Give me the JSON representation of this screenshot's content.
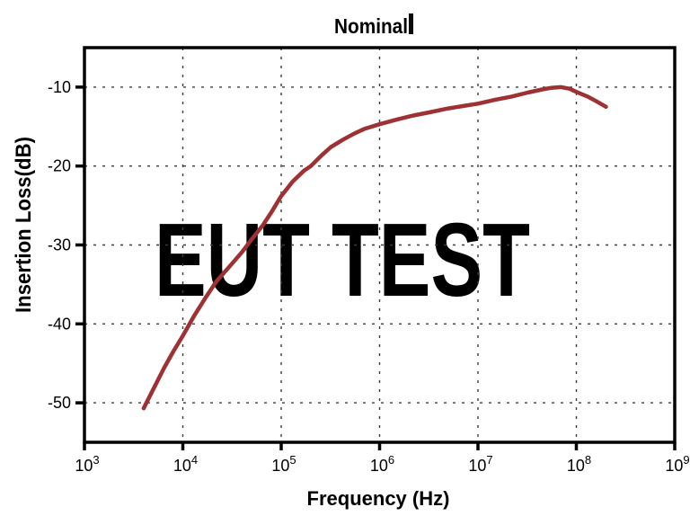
{
  "chart_data": {
    "type": "line",
    "title": "Nominal",
    "xlabel": "Frequency (Hz)",
    "ylabel": "Insertion Loss(dB)",
    "x_scale": "log",
    "xlim": [
      1000,
      1000000000
    ],
    "ylim": [
      -55,
      -5
    ],
    "x_tick_exponents": [
      3,
      4,
      5,
      6,
      7,
      8,
      9
    ],
    "y_ticks": [
      -10,
      -20,
      -30,
      -40,
      -50
    ],
    "grid": true,
    "legend": "none",
    "series": [
      {
        "name": "Nominal",
        "color": "#9e3133",
        "x": [
          4000,
          5000,
          6500,
          8000,
          10000,
          13000,
          17000,
          22000,
          30000,
          40000,
          50000,
          65000,
          80000,
          100000,
          130000,
          170000,
          200000,
          260000,
          320000,
          420000,
          550000,
          700000,
          1000000,
          1500000,
          2200000,
          3200000,
          5000000,
          7000000,
          10000000,
          15000000,
          22000000,
          32000000,
          45000000,
          55000000,
          70000000,
          85000000,
          100000000,
          130000000,
          160000000,
          200000000
        ],
        "y": [
          -50.7,
          -48.3,
          -45.5,
          -43.5,
          -41.5,
          -39.0,
          -36.7,
          -34.6,
          -32.7,
          -30.9,
          -29.3,
          -27.5,
          -25.8,
          -23.8,
          -22.0,
          -20.6,
          -20.0,
          -18.6,
          -17.6,
          -16.7,
          -15.9,
          -15.3,
          -14.7,
          -14.1,
          -13.6,
          -13.2,
          -12.7,
          -12.4,
          -12.1,
          -11.6,
          -11.2,
          -10.7,
          -10.3,
          -10.1,
          -10.0,
          -10.2,
          -10.6,
          -11.2,
          -11.8,
          -12.5
        ]
      }
    ]
  },
  "watermark": {
    "text": "EUT TEST",
    "color": "#b9d0e8"
  },
  "colors": {
    "curve": "#9e3133",
    "axis": "#000000",
    "grid": "#3c3c3c",
    "watermark": "#b9d0e8",
    "background": "#ffffff"
  }
}
